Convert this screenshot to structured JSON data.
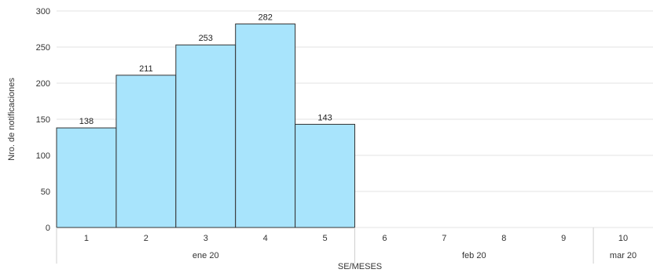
{
  "chart_data": {
    "type": "bar",
    "categories": [
      "1",
      "2",
      "3",
      "4",
      "5",
      "6",
      "7",
      "8",
      "9",
      "10"
    ],
    "values": [
      138,
      211,
      253,
      282,
      143,
      null,
      null,
      null,
      null,
      null
    ],
    "data_labels": [
      "138",
      "211",
      "253",
      "282",
      "143",
      "",
      "",
      "",
      "",
      ""
    ],
    "groups": [
      {
        "label": "ene 20",
        "categories": [
          "1",
          "2",
          "3",
          "4",
          "5"
        ]
      },
      {
        "label": "feb 20",
        "categories": [
          "6",
          "7",
          "8",
          "9"
        ]
      },
      {
        "label": "mar 20",
        "categories": [
          "10"
        ]
      }
    ],
    "xlabel": "SE/MESES",
    "ylabel": "Nro. de notificaciones",
    "ylim": [
      0,
      300
    ],
    "yticks": [
      "0",
      "50",
      "100",
      "150",
      "200",
      "250",
      "300"
    ],
    "grid": true,
    "colors": {
      "bar_fill": "#a8e4fc",
      "bar_stroke": "#333333",
      "grid": "#e3e3e3"
    }
  }
}
